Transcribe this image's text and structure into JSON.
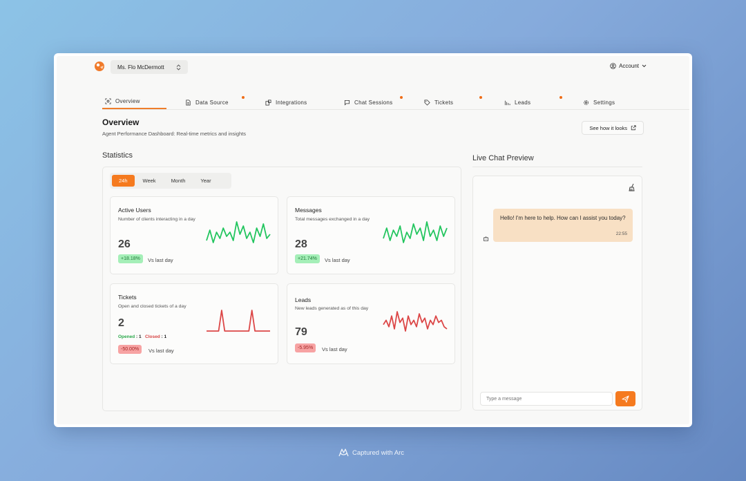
{
  "topbar": {
    "user_name": "Ms. Flo McDermott",
    "account_label": "Account"
  },
  "tabs": [
    {
      "label": "Overview",
      "active": true,
      "dot": false,
      "icon": "eye-scan-icon"
    },
    {
      "label": "Data Source",
      "active": false,
      "dot": true,
      "icon": "document-icon"
    },
    {
      "label": "Integrations",
      "active": false,
      "dot": false,
      "icon": "puzzle-icon"
    },
    {
      "label": "Chat Sessions",
      "active": false,
      "dot": true,
      "icon": "chat-icon"
    },
    {
      "label": "Tickets",
      "active": false,
      "dot": true,
      "icon": "tag-icon"
    },
    {
      "label": "Leads",
      "active": false,
      "dot": true,
      "icon": "chart-bars-icon"
    },
    {
      "label": "Settings",
      "active": false,
      "dot": false,
      "icon": "gear-icon"
    }
  ],
  "header": {
    "title": "Overview",
    "subtitle": "Agent Performance Dashboard: Real-time metrics and insights",
    "see_button": "See how it looks"
  },
  "statistics": {
    "title": "Statistics",
    "periods": [
      "24h",
      "Week",
      "Month",
      "Year"
    ],
    "selected_period": "24h",
    "cards": {
      "active_users": {
        "title": "Active Users",
        "desc": "Number of clients interacting in a day",
        "value": "26",
        "change": "+18.18%",
        "vs": "Vs last day",
        "trend": "up",
        "color": "#22c55e",
        "spark": [
          3,
          8,
          2,
          7,
          4,
          9,
          5,
          7,
          3,
          12,
          6,
          10,
          4,
          7,
          2,
          9,
          5,
          11,
          4,
          6
        ]
      },
      "messages": {
        "title": "Messages",
        "desc": "Total messages exchanged in a day",
        "value": "28",
        "change": "+21.74%",
        "vs": "Vs last day",
        "trend": "up",
        "color": "#22c55e",
        "spark": [
          4,
          9,
          3,
          8,
          5,
          10,
          2,
          7,
          4,
          11,
          6,
          9,
          3,
          12,
          5,
          8,
          3,
          10,
          5,
          9
        ]
      },
      "tickets": {
        "title": "Tickets",
        "desc": "Open and closed tickets of a day",
        "value": "2",
        "opened_label": "Opened",
        "opened_value": "1",
        "closed_label": "Closed",
        "closed_value": "1",
        "change": "-50.00%",
        "vs": "Vs last day",
        "trend": "down",
        "color": "#dc4646",
        "spark": [
          0,
          0,
          0,
          0,
          0,
          10,
          0,
          0,
          0,
          0,
          0,
          0,
          0,
          0,
          0,
          10,
          0,
          0,
          0,
          0,
          0,
          0
        ]
      },
      "leads": {
        "title": "Leads",
        "desc": "New leads generated as of this day",
        "value": "79",
        "change": "-5.95%",
        "vs": "Vs last day",
        "trend": "down",
        "color": "#dc4646",
        "spark": [
          5,
          7,
          4,
          9,
          3,
          11,
          6,
          8,
          2,
          9,
          5,
          7,
          4,
          10,
          6,
          8,
          3,
          7,
          5,
          9,
          6,
          7,
          4,
          3
        ]
      }
    }
  },
  "chat": {
    "title": "Live Chat Preview",
    "bot_message": "Hello! I'm here to help. How can I assist you today?",
    "time": "22:55",
    "input_placeholder": "Type a message"
  },
  "footer": {
    "capture_text": "Captured with Arc"
  },
  "colors": {
    "accent": "#f57a1f",
    "up": "#22c55e",
    "down": "#dc4646"
  }
}
